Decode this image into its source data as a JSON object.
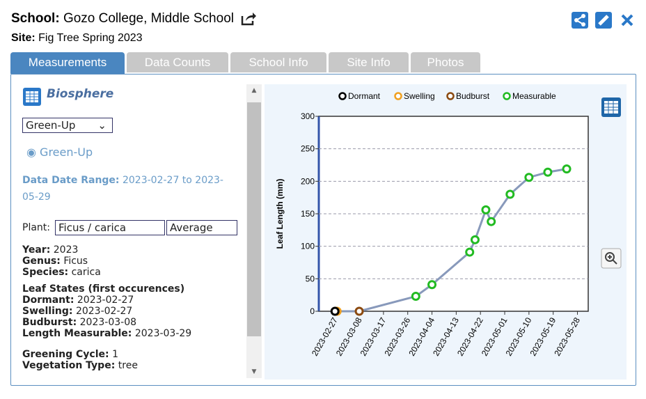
{
  "header": {
    "school_label": "School:",
    "school": "Gozo College, Middle School",
    "site_label": "Site:",
    "site": "Fig Tree Spring 2023"
  },
  "tabs": [
    "Measurements",
    "Data Counts",
    "School Info",
    "Site Info",
    "Photos"
  ],
  "sidebar": {
    "title": "Biosphere",
    "dropdown": "Green-Up",
    "radio": "Green-Up",
    "range_label": "Data Date Range:",
    "range": "2023-02-27 to 2023-05-29",
    "plant_label": "Plant:",
    "plant": "Ficus / carica",
    "stat": "Average",
    "fields": [
      {
        "label": "Year:",
        "value": "2023"
      },
      {
        "label": "Genus:",
        "value": "Ficus"
      },
      {
        "label": "Species:",
        "value": "carica"
      }
    ],
    "states_title": "Leaf States (first occurences)",
    "states": [
      {
        "label": "Dormant:",
        "value": "2023-02-27"
      },
      {
        "label": "Swelling:",
        "value": "2023-02-27"
      },
      {
        "label": "Budburst:",
        "value": "2023-03-08"
      },
      {
        "label": "Length Measurable:",
        "value": "2023-03-29"
      }
    ],
    "extra": [
      {
        "label": "Greening Cycle:",
        "value": "1"
      },
      {
        "label": "Vegetation Type:",
        "value": "tree"
      }
    ]
  },
  "chart_data": {
    "type": "scatter",
    "y_label": "Leaf Length (mm)",
    "grid": true,
    "xlim": [
      "2023-02-21",
      "2023-06-01"
    ],
    "ylim": [
      0,
      300
    ],
    "yticks": [
      0,
      50,
      100,
      150,
      200,
      250,
      300
    ],
    "xticks": [
      "2023-02-27",
      "2023-03-08",
      "2023-03-17",
      "2023-03-26",
      "2023-04-04",
      "2023-04-13",
      "2023-04-22",
      "2023-05-01",
      "2023-05-10",
      "2023-05-19",
      "2023-05-28"
    ],
    "line_color": "#8899bb",
    "series": [
      {
        "name": "Dormant",
        "color": "#000000",
        "x": [
          "2023-02-27"
        ],
        "values": [
          0
        ]
      },
      {
        "name": "Swelling",
        "color": "#f0a020",
        "x": [
          "2023-02-27"
        ],
        "values": [
          0
        ]
      },
      {
        "name": "Budburst",
        "color": "#8b4a10",
        "x": [
          "2023-03-08"
        ],
        "values": [
          0
        ]
      },
      {
        "name": "Measurable",
        "color": "#22bb22",
        "x": [
          "2023-03-29",
          "2023-04-04",
          "2023-04-18",
          "2023-04-20",
          "2023-04-24",
          "2023-04-26",
          "2023-05-03",
          "2023-05-10",
          "2023-05-17",
          "2023-05-24"
        ],
        "values": [
          23,
          41,
          91,
          110,
          156,
          138,
          180,
          206,
          214,
          219
        ]
      }
    ]
  }
}
